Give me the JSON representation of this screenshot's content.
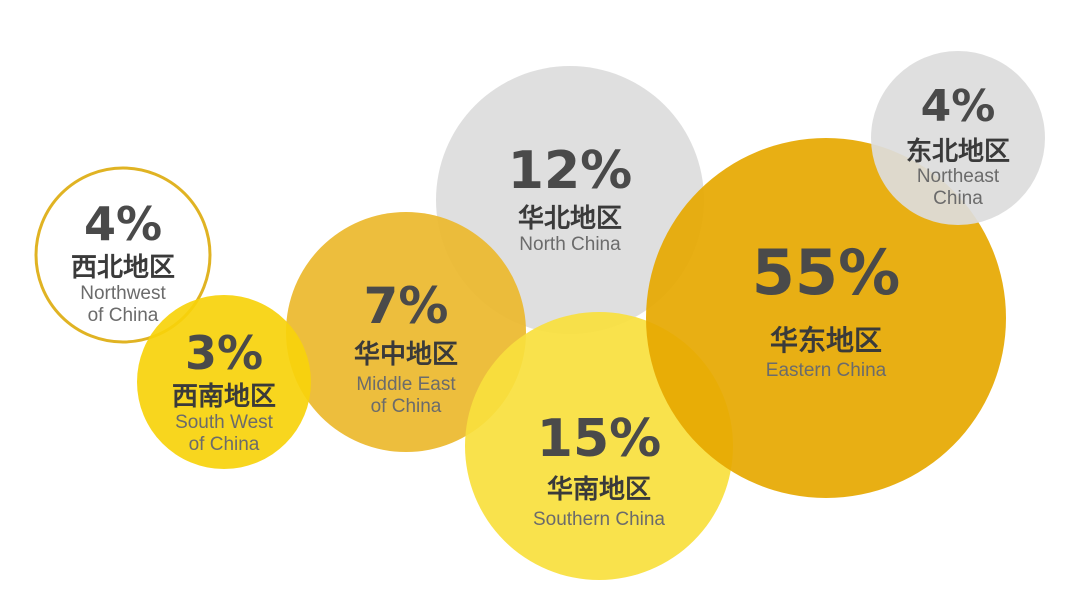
{
  "chart_data": {
    "type": "bubble",
    "unit": "%",
    "grid": false,
    "legend": "none",
    "regions": [
      {
        "id": "northwest",
        "value": 4,
        "label_cn": "西北地区",
        "label_en": [
          "Northwest",
          "of China"
        ],
        "color": "#ffffff",
        "outline": "#e0b323"
      },
      {
        "id": "southwest",
        "value": 3,
        "label_cn": "西南地区",
        "label_en": [
          "South West",
          "of China"
        ],
        "color": "#f7d20b"
      },
      {
        "id": "middle-east",
        "value": 7,
        "label_cn": "华中地区",
        "label_en": [
          "Middle East",
          "of China"
        ],
        "color": "#ebb92c"
      },
      {
        "id": "north",
        "value": 12,
        "label_cn": "华北地区",
        "label_en": [
          "North China"
        ],
        "color": "#dcdcdc"
      },
      {
        "id": "southern",
        "value": 15,
        "label_cn": "华南地区",
        "label_en": [
          "Southern China"
        ],
        "color": "#f9df3d"
      },
      {
        "id": "eastern",
        "value": 55,
        "label_cn": "华东地区",
        "label_en": [
          "Eastern China"
        ],
        "color": "#e6a800"
      },
      {
        "id": "northeast",
        "value": 4,
        "label_cn": "东北地区",
        "label_en": [
          "Northeast",
          "China"
        ],
        "color": "#dcdcdc"
      }
    ]
  }
}
